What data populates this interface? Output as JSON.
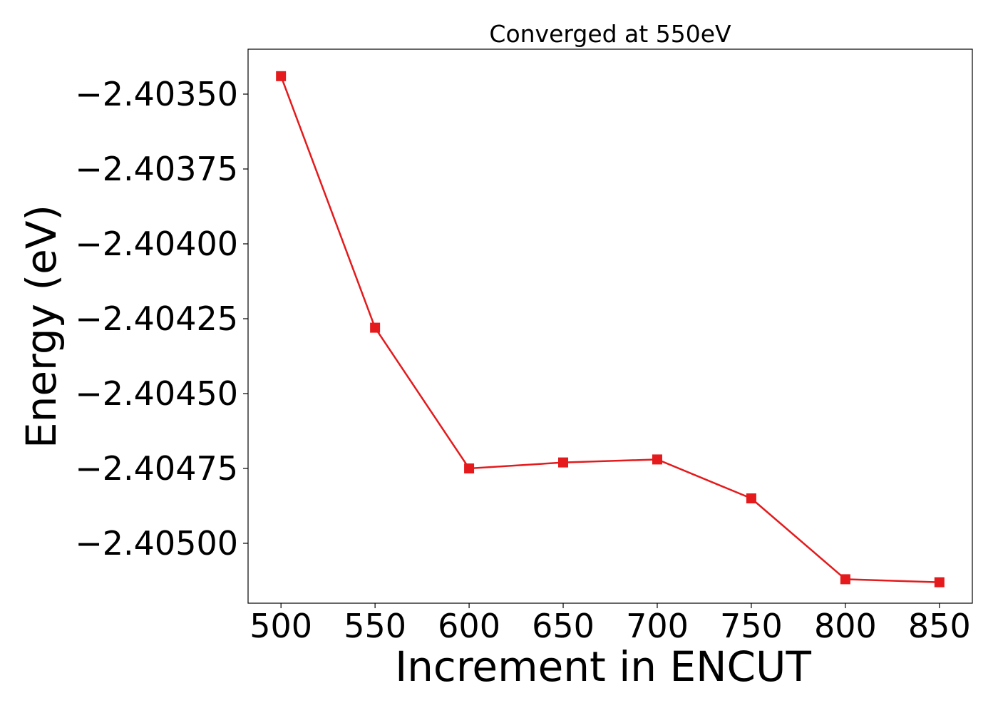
{
  "chart_data": {
    "type": "line",
    "title": "Converged at 550eV",
    "xlabel": "Increment in ENCUT",
    "ylabel": "Energy (eV)",
    "x": [
      500,
      550,
      600,
      650,
      700,
      750,
      800,
      850
    ],
    "series": [
      {
        "values": [
          -2.40344,
          -2.40428,
          -2.40475,
          -2.40473,
          -2.40472,
          -2.40485,
          -2.40512,
          -2.40513
        ],
        "color": "#e41a1c",
        "marker": "square"
      }
    ],
    "xticks": [
      500,
      550,
      600,
      650,
      700,
      750,
      800,
      850
    ],
    "xtick_labels": [
      "500",
      "550",
      "600",
      "650",
      "700",
      "750",
      "800",
      "850"
    ],
    "yticks": [
      -2.4035,
      -2.40375,
      -2.404,
      -2.40425,
      -2.4045,
      -2.40475,
      -2.405
    ],
    "ytick_labels": [
      "−2.40350",
      "−2.40375",
      "−2.40400",
      "−2.40425",
      "−2.40450",
      "−2.40475",
      "−2.40500"
    ],
    "xlim": [
      482.5,
      867.5
    ],
    "ylim": [
      -2.4052,
      -2.40335
    ],
    "grid": false,
    "legend": "none"
  }
}
